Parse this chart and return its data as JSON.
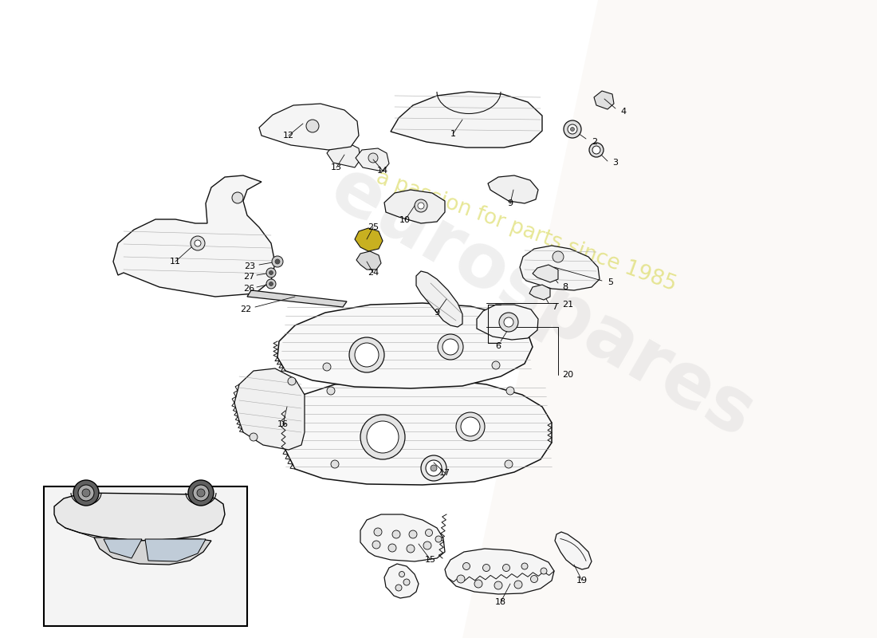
{
  "background_color": "#ffffff",
  "fig_width": 11.0,
  "fig_height": 8.0,
  "dpi": 100,
  "wm1_text": "eurospares",
  "wm2_text": "a passion for parts since 1985",
  "wm1_color": "#c8c8c8",
  "wm2_color": "#d4d440",
  "wm1_alpha": 0.28,
  "wm2_alpha": 0.55,
  "wm1_rot": -30,
  "wm2_rot": -20,
  "wm1_fs": 68,
  "wm2_fs": 19,
  "label_fs": 8,
  "line_color": "#111111",
  "part_fc": "#f5f5f5",
  "part_ec": "#111111",
  "part_lw": 0.9
}
